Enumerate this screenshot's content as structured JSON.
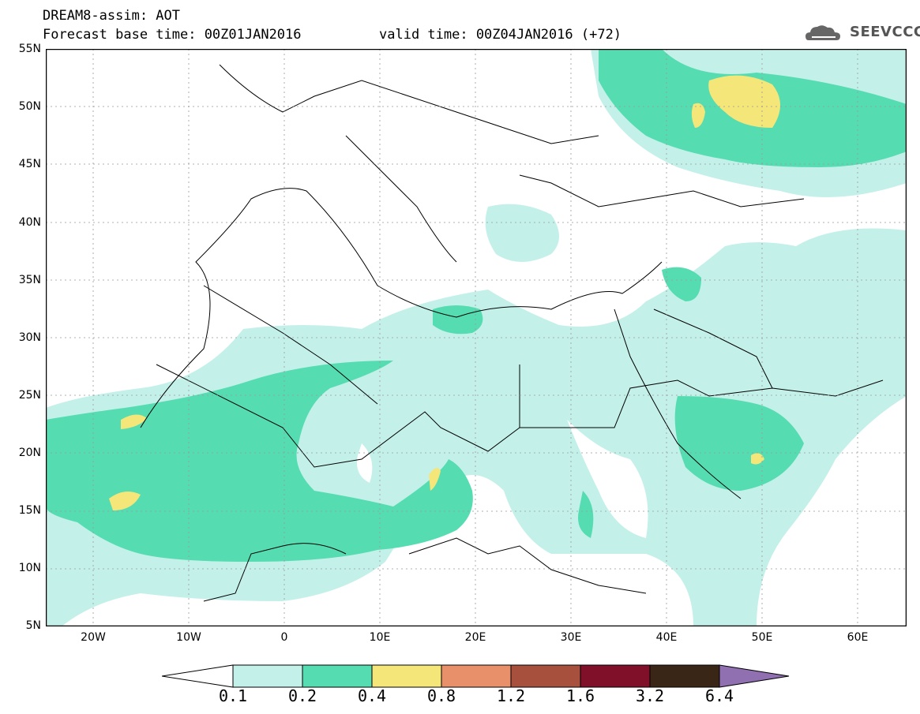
{
  "header": {
    "title": "DREAM8-assim: AOT",
    "base_time": "Forecast base time: 00Z01JAN2016",
    "valid_time": "valid time: 00Z04JAN2016 (+72)"
  },
  "logo": {
    "text": "SEEVCCC",
    "icon": "cloud-logo-icon"
  },
  "map": {
    "latitude_labels": [
      "55N",
      "50N",
      "45N",
      "40N",
      "35N",
      "30N",
      "25N",
      "20N",
      "15N",
      "10N",
      "5N"
    ],
    "longitude_labels": [
      "20W",
      "10W",
      "0",
      "10E",
      "20E",
      "30E",
      "40E",
      "50E",
      "60E"
    ],
    "lon_range": [
      -25,
      65
    ],
    "lat_range": [
      5,
      55
    ]
  },
  "legend": {
    "labels": [
      "0.1",
      "0.2",
      "0.4",
      "0.8",
      "1.2",
      "1.6",
      "3.2",
      "6.4"
    ],
    "colors": [
      "#ffffff",
      "#c4f0ea",
      "#55dcb0",
      "#f5e67a",
      "#e8906a",
      "#a8503e",
      "#80102a",
      "#3a2616",
      "#9070b0"
    ]
  }
}
